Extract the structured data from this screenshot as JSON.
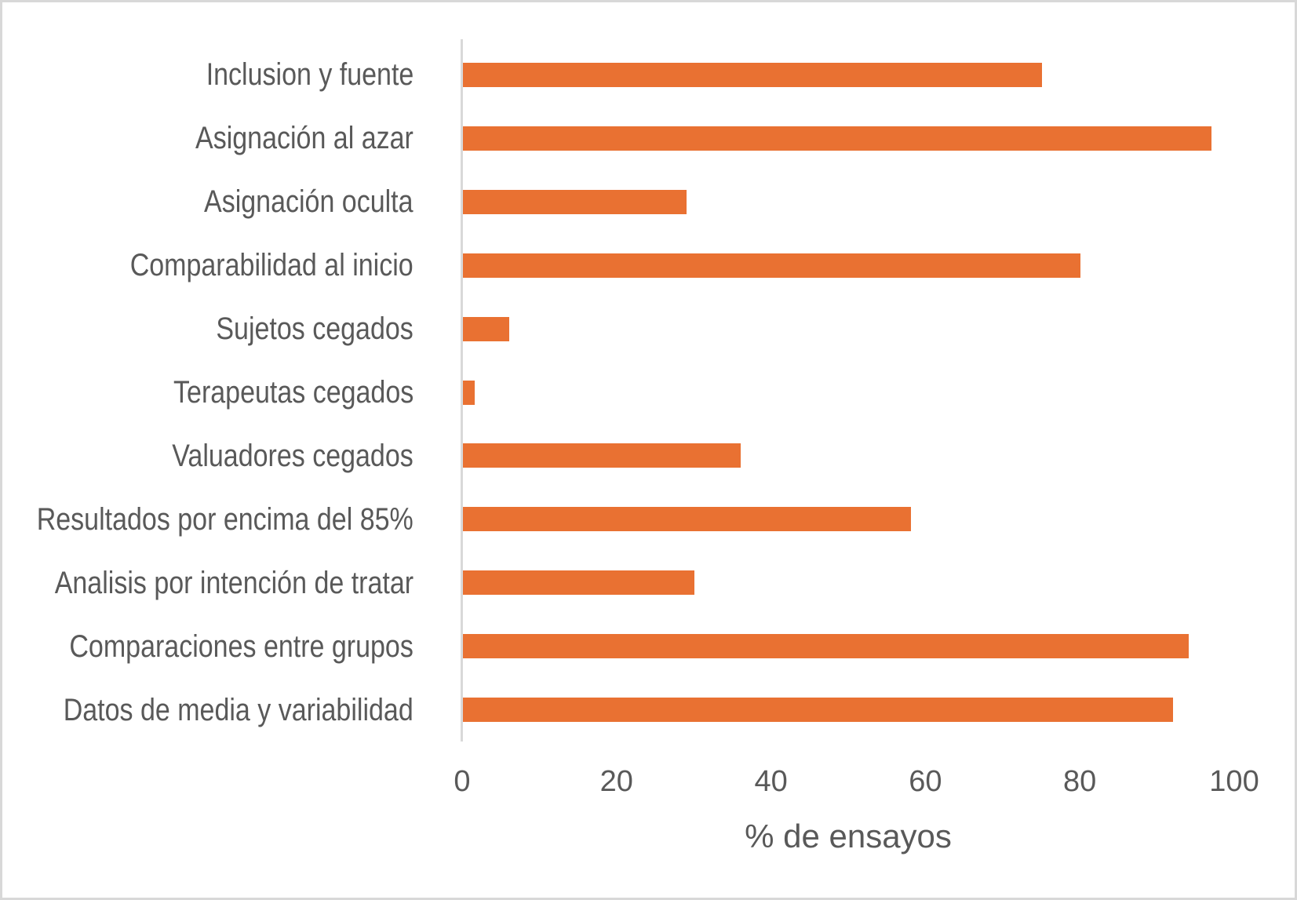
{
  "chart_data": {
    "type": "bar",
    "orientation": "horizontal",
    "title": "",
    "xlabel": "% de ensayos",
    "ylabel": "",
    "xlim": [
      0,
      100
    ],
    "xticks": [
      0,
      20,
      40,
      60,
      80,
      100
    ],
    "xtick_labels": [
      "0",
      "20",
      "40",
      "60",
      "80",
      "100"
    ],
    "grid": false,
    "legend": false,
    "categories": [
      "Inclusion y fuente",
      "Asignación al azar",
      "Asignación oculta",
      "Comparabilidad al inicio",
      "Sujetos cegados",
      "Terapeutas cegados",
      "Valuadores cegados",
      "Resultados por encima del 85%",
      "Analisis por intención de tratar",
      "Comparaciones entre grupos",
      "Datos de media y variabilidad"
    ],
    "values": [
      75,
      97,
      29,
      80,
      6,
      1.5,
      36,
      58,
      30,
      94,
      92
    ],
    "colors": {
      "bar": "#E97132",
      "axis_line": "#D9D9D9",
      "text": "#595959",
      "chart_border": "#D8D8D8",
      "background": "#FFFFFF"
    }
  }
}
